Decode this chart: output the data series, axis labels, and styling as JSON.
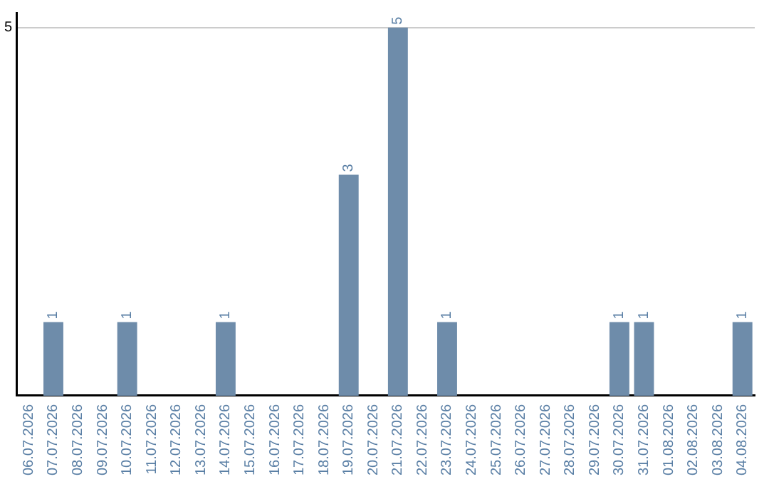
{
  "chart_data": {
    "type": "bar",
    "categories": [
      "06.07.2026",
      "07.07.2026",
      "08.07.2026",
      "09.07.2026",
      "10.07.2026",
      "11.07.2026",
      "12.07.2026",
      "13.07.2026",
      "14.07.2026",
      "15.07.2026",
      "16.07.2026",
      "17.07.2026",
      "18.07.2026",
      "19.07.2026",
      "20.07.2026",
      "21.07.2026",
      "22.07.2026",
      "23.07.2026",
      "24.07.2026",
      "25.07.2026",
      "26.07.2026",
      "27.07.2026",
      "28.07.2026",
      "29.07.2026",
      "30.07.2026",
      "31.07.2026",
      "01.08.2026",
      "02.08.2026",
      "03.08.2026",
      "04.08.2026"
    ],
    "values": [
      0,
      1,
      0,
      0,
      1,
      0,
      0,
      0,
      1,
      0,
      0,
      0,
      0,
      3,
      0,
      5,
      0,
      1,
      0,
      0,
      0,
      0,
      0,
      0,
      1,
      1,
      0,
      0,
      0,
      1
    ],
    "color": "#6e8caa",
    "value_labels": [
      null,
      "1",
      null,
      null,
      "1",
      null,
      null,
      null,
      "1",
      null,
      null,
      null,
      null,
      "3",
      null,
      "5",
      null,
      "1",
      null,
      null,
      null,
      null,
      null,
      null,
      "1",
      "1",
      null,
      null,
      null,
      "1"
    ],
    "ylim": [
      0,
      5.2
    ],
    "yticks": [
      5
    ],
    "grid": "y",
    "legend": false
  }
}
